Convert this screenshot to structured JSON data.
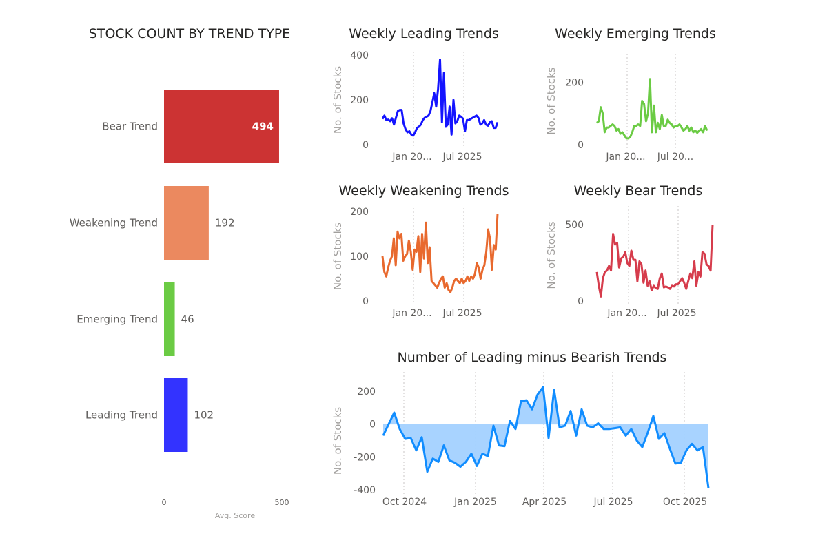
{
  "chart_data": [
    {
      "id": "bar",
      "type": "bar",
      "orientation": "horizontal",
      "title": "STOCK COUNT BY TREND TYPE",
      "categories": [
        "Bear Trend",
        "Weakening Trend",
        "Emerging Trend",
        "Leading Trend"
      ],
      "values": [
        494,
        192,
        46,
        102
      ],
      "value_labels": [
        "494",
        "192",
        "46",
        "102"
      ],
      "colors": [
        "#cc3333",
        "#eb895f",
        "#6bcb44",
        "#3333ff"
      ],
      "xlabel": "Avg. Score",
      "xlim": [
        0,
        500
      ],
      "xticks": [
        "0",
        "500"
      ]
    },
    {
      "id": "leading",
      "type": "line",
      "title": "Weekly Leading Trends",
      "ylabel": "No. of Stocks",
      "color": "#1414ff",
      "ylim": [
        0,
        400
      ],
      "yticks": [
        "0",
        "200",
        "400"
      ],
      "xticks": [
        "Jan 20...",
        "Jul 2025"
      ],
      "values": [
        115,
        130,
        110,
        112,
        105,
        118,
        90,
        120,
        150,
        155,
        155,
        95,
        70,
        55,
        60,
        45,
        40,
        55,
        75,
        80,
        90,
        110,
        120,
        125,
        130,
        150,
        190,
        230,
        170,
        250,
        380,
        100,
        320,
        80,
        90,
        170,
        45,
        200,
        95,
        105,
        130,
        125,
        115,
        60,
        110,
        110,
        115,
        120,
        125,
        130,
        120,
        90,
        95,
        110,
        90,
        85,
        100,
        105,
        75,
        75,
        100
      ],
      "x_start": "Sep 2024",
      "x_end": "Nov 2025"
    },
    {
      "id": "emerging",
      "type": "line",
      "title": "Weekly Emerging Trends",
      "ylabel": "No. of Stocks",
      "color": "#6bcb44",
      "ylim": [
        0,
        280
      ],
      "yticks": [
        "0",
        "200"
      ],
      "xticks": [
        "Jan 20...",
        "Jul 20..."
      ],
      "values": [
        70,
        75,
        120,
        100,
        40,
        55,
        55,
        60,
        65,
        60,
        45,
        50,
        35,
        40,
        30,
        20,
        20,
        25,
        40,
        60,
        60,
        65,
        60,
        140,
        130,
        75,
        100,
        210,
        40,
        125,
        40,
        70,
        50,
        95,
        60,
        60,
        80,
        70,
        65,
        55,
        60,
        60,
        65,
        55,
        45,
        50,
        60,
        45,
        55,
        40,
        45,
        38,
        45,
        50,
        40,
        60,
        45
      ],
      "x_start": "Sep 2024",
      "x_end": "Nov 2025"
    },
    {
      "id": "weakening",
      "type": "line",
      "title": "Weekly Weakening Trends",
      "ylabel": "No. of Stocks",
      "color": "#e8692e",
      "ylim": [
        0,
        200
      ],
      "yticks": [
        "0",
        "100",
        "200"
      ],
      "xticks": [
        "Jan 20...",
        "Jul 2025"
      ],
      "values": [
        100,
        65,
        55,
        75,
        90,
        100,
        140,
        80,
        155,
        140,
        150,
        90,
        100,
        105,
        135,
        110,
        70,
        115,
        110,
        145,
        65,
        150,
        95,
        175,
        85,
        120,
        45,
        40,
        35,
        30,
        40,
        50,
        55,
        30,
        40,
        25,
        20,
        30,
        45,
        50,
        45,
        40,
        50,
        40,
        45,
        55,
        45,
        55,
        50,
        60,
        85,
        75,
        50,
        70,
        80,
        110,
        160,
        140,
        70,
        125,
        115,
        195
      ],
      "x_start": "Sep 2024",
      "x_end": "Nov 2025"
    },
    {
      "id": "bear",
      "type": "line",
      "title": "Weekly Bear Trends",
      "ylabel": "No. of Stocks",
      "color": "#d63c4c",
      "ylim": [
        0,
        600
      ],
      "yticks": [
        "0",
        "500"
      ],
      "xticks": [
        "Jan 20...",
        "Jul 2025"
      ],
      "values": [
        190,
        100,
        30,
        150,
        190,
        200,
        230,
        200,
        440,
        370,
        380,
        220,
        280,
        290,
        320,
        250,
        230,
        330,
        270,
        270,
        130,
        260,
        240,
        120,
        200,
        100,
        130,
        70,
        100,
        85,
        80,
        150,
        180,
        90,
        95,
        90,
        80,
        100,
        95,
        110,
        110,
        130,
        150,
        120,
        80,
        130,
        180,
        150,
        260,
        100,
        190,
        160,
        320,
        310,
        240,
        230,
        200,
        500
      ],
      "x_start": "Sep 2024",
      "x_end": "Nov 2025"
    },
    {
      "id": "net",
      "type": "area",
      "title": "Number of Leading minus Bearish Trends",
      "ylabel": "No. of Stocks",
      "color": "#118dff",
      "fill": "#a3d1ff",
      "ylim": [
        -400,
        280
      ],
      "yticks": [
        "200",
        "0",
        "-200",
        "-400"
      ],
      "ytick_values": [
        200,
        0,
        -200,
        -400
      ],
      "xticks": [
        "Oct 2024",
        "Jan 2025",
        "Apr 2025",
        "Jul 2025",
        "Oct 2025"
      ],
      "values": [
        -70,
        0,
        70,
        -30,
        -90,
        -85,
        -160,
        -80,
        -290,
        -210,
        -230,
        -130,
        -220,
        -235,
        -260,
        -230,
        -180,
        -255,
        -180,
        -195,
        -10,
        -130,
        -135,
        20,
        -30,
        140,
        145,
        90,
        180,
        225,
        -85,
        210,
        -20,
        -10,
        80,
        -70,
        90,
        -10,
        -20,
        5,
        -30,
        -30,
        -25,
        -20,
        -70,
        -30,
        -100,
        -140,
        -50,
        50,
        -90,
        -55,
        -150,
        -240,
        -235,
        -160,
        -120,
        -160,
        -140,
        -390
      ],
      "x_start": "Sep 2024",
      "x_end": "Nov 2025"
    }
  ]
}
